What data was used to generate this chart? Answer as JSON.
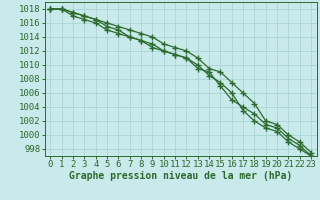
{
  "x": [
    0,
    1,
    2,
    3,
    4,
    5,
    6,
    7,
    8,
    9,
    10,
    11,
    12,
    13,
    14,
    15,
    16,
    17,
    18,
    19,
    20,
    21,
    22,
    23
  ],
  "line1": [
    1018,
    1018,
    1017.5,
    1017,
    1016.5,
    1016,
    1015.5,
    1015,
    1014.5,
    1014,
    1013,
    1012.5,
    1012,
    1011,
    1009.5,
    1009,
    1007.5,
    1006,
    1004.5,
    1002,
    1001.5,
    1000,
    999,
    997.5
  ],
  "line2": [
    1018,
    1018,
    1017,
    1016.5,
    1016,
    1015,
    1014.5,
    1014,
    1013.5,
    1012.5,
    1012,
    1011.5,
    1011,
    1009.5,
    1009,
    1007,
    1005,
    1004,
    1003,
    1001.5,
    1001,
    999.5,
    998.5,
    997
  ],
  "line3": [
    1018,
    1018,
    1017.5,
    1017,
    1016.5,
    1015.5,
    1015,
    1014,
    1013.5,
    1013,
    1012,
    1011.5,
    1011,
    1010,
    1008.5,
    1007.5,
    1006,
    1003.5,
    1002,
    1001,
    1000.5,
    999,
    998,
    997
  ],
  "line_color": "#2d6a2d",
  "bg_color": "#c8eaea",
  "grid_color": "#aad4d4",
  "xlabel": "Graphe pression niveau de la mer (hPa)",
  "ylim": [
    997,
    1019
  ],
  "yticks": [
    998,
    1000,
    1002,
    1004,
    1006,
    1008,
    1010,
    1012,
    1014,
    1016,
    1018
  ],
  "xticks": [
    0,
    1,
    2,
    3,
    4,
    5,
    6,
    7,
    8,
    9,
    10,
    11,
    12,
    13,
    14,
    15,
    16,
    17,
    18,
    19,
    20,
    21,
    22,
    23
  ],
  "marker": "+",
  "markersize": 4,
  "linewidth": 0.9,
  "tick_fontsize": 6.5,
  "xlabel_fontsize": 7.0
}
